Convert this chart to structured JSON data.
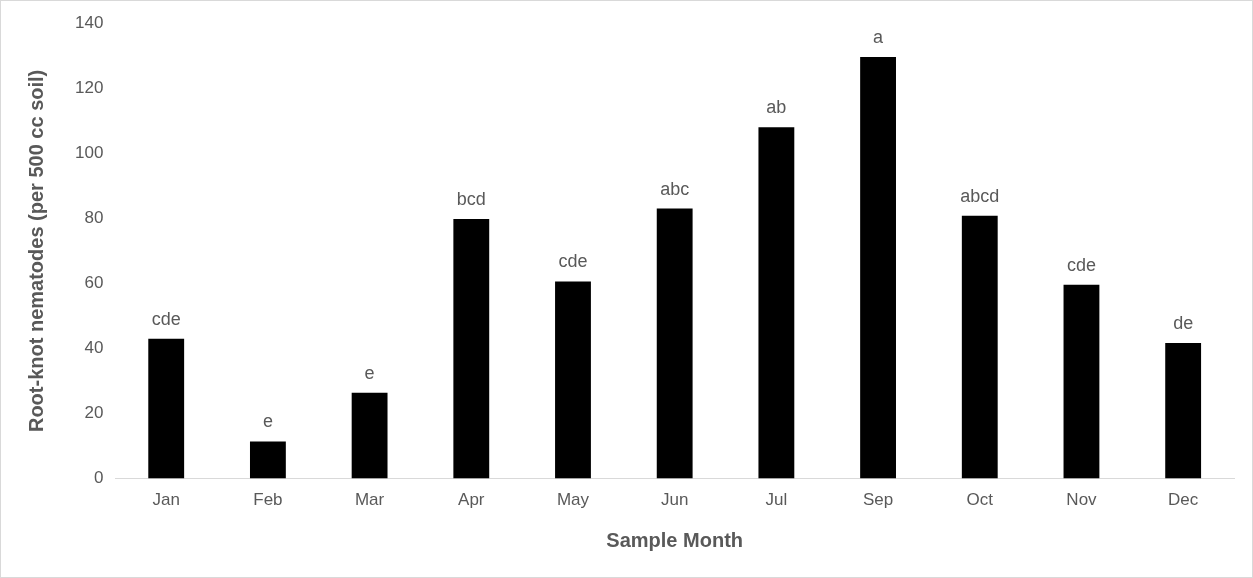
{
  "chart_data": {
    "type": "bar",
    "xlabel": "Sample Month",
    "ylabel": "Root-knot nematodes (per 500 cc soil)",
    "categories": [
      "Jan",
      "Feb",
      "Mar",
      "Apr",
      "May",
      "Jun",
      "Jul",
      "Sep",
      "Oct",
      "Nov",
      "Dec"
    ],
    "values": [
      43,
      11.4,
      26.4,
      79.8,
      60.6,
      83,
      108,
      129.6,
      80.8,
      59.6,
      41.7
    ],
    "color": "#000000",
    "ylim": [
      0,
      140
    ],
    "yticks": [
      0,
      20,
      40,
      60,
      80,
      100,
      120,
      140
    ],
    "grid": false,
    "legend": false,
    "annotations": [
      {
        "text": "cde",
        "x": "Jan",
        "y": 43
      },
      {
        "text": "e",
        "x": "Feb",
        "y": 11.4
      },
      {
        "text": "e",
        "x": "Mar",
        "y": 26.4
      },
      {
        "text": "bcd",
        "x": "Apr",
        "y": 79.8
      },
      {
        "text": "cde",
        "x": "May",
        "y": 60.6
      },
      {
        "text": "abc",
        "x": "Jun",
        "y": 83
      },
      {
        "text": "ab",
        "x": "Jul",
        "y": 108
      },
      {
        "text": "a",
        "x": "Sep",
        "y": 129.6
      },
      {
        "text": "abcd",
        "x": "Oct",
        "y": 80.8
      },
      {
        "text": "cde",
        "x": "Nov",
        "y": 59.6
      },
      {
        "text": "de",
        "x": "Dec",
        "y": 41.7
      }
    ]
  }
}
